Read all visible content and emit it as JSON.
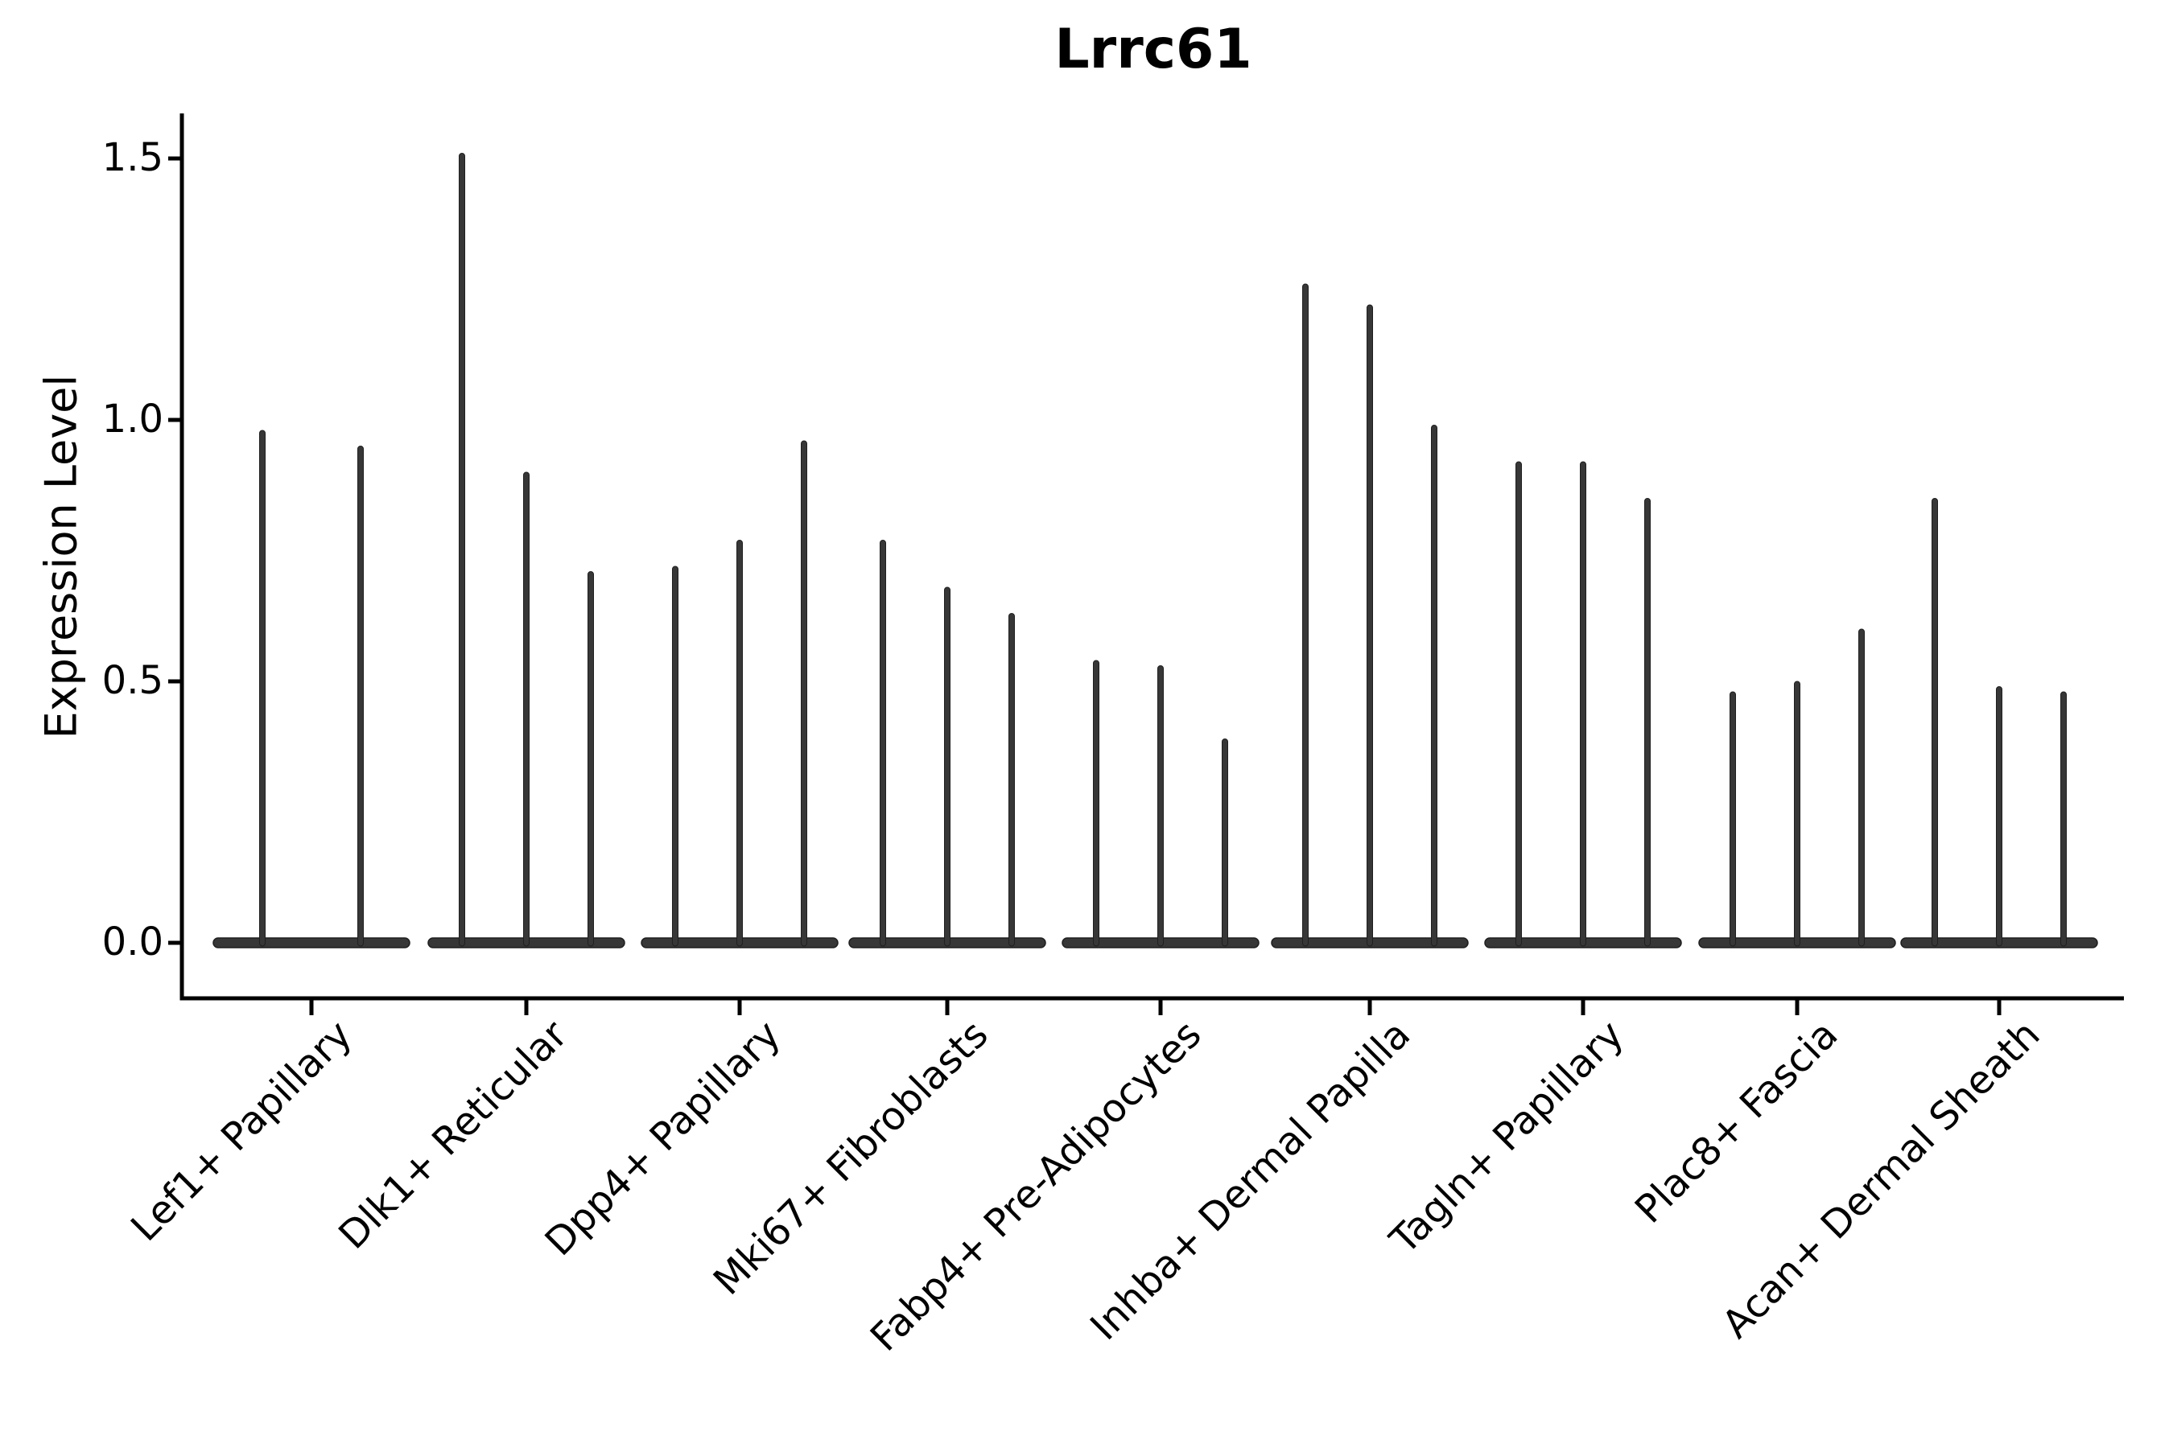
{
  "chart_data": {
    "type": "violin",
    "title": "Lrrc61",
    "ylabel": "Expression Level",
    "xlabel": "",
    "ytick_labels": [
      "0.0",
      "0.5",
      "1.0",
      "1.5"
    ],
    "ytick_values": [
      0.0,
      0.5,
      1.0,
      1.5
    ],
    "ylim": [
      -0.11,
      1.59
    ],
    "grid": false,
    "legend": null,
    "categories": [
      "Lef1+ Papillary",
      "Dlk1+ Reticular",
      "Dpp4+ Papillary",
      "Mki67+ Fibroblasts",
      "Fabp4+ Pre-Adipocytes",
      "Inhba+ Dermal Papilla",
      "Tagln+ Papillary",
      "Plac8+ Fascia",
      "Acan+ Dermal Sheath"
    ],
    "groups": [
      {
        "label": "Lef1+ Papillary",
        "violin_peaks": [
          0.98,
          0.95
        ]
      },
      {
        "label": "Dlk1+ Reticular",
        "violin_peaks": [
          1.51,
          0.9,
          0.71
        ]
      },
      {
        "label": "Dpp4+ Papillary",
        "violin_peaks": [
          0.72,
          0.77,
          0.96
        ]
      },
      {
        "label": "Mki67+ Fibroblasts",
        "violin_peaks": [
          0.77,
          0.68,
          0.63
        ]
      },
      {
        "label": "Fabp4+ Pre-Adipocytes",
        "violin_peaks": [
          0.54,
          0.53,
          0.39
        ]
      },
      {
        "label": "Inhba+ Dermal Papilla",
        "violin_peaks": [
          1.26,
          1.22,
          0.99
        ]
      },
      {
        "label": "Tagln+ Papillary",
        "violin_peaks": [
          0.92,
          0.92,
          0.85
        ]
      },
      {
        "label": "Plac8+ Fascia",
        "violin_peaks": [
          0.48,
          0.5,
          0.6
        ]
      },
      {
        "label": "Acan+ Dermal Sheath",
        "violin_peaks": [
          0.85,
          0.49,
          0.48
        ]
      }
    ],
    "style": {
      "violin_fill": "#373737",
      "violin_edge": "#1f1f1f",
      "axis_color": "#000000",
      "text_color": "#000000",
      "background": "#ffffff"
    }
  }
}
